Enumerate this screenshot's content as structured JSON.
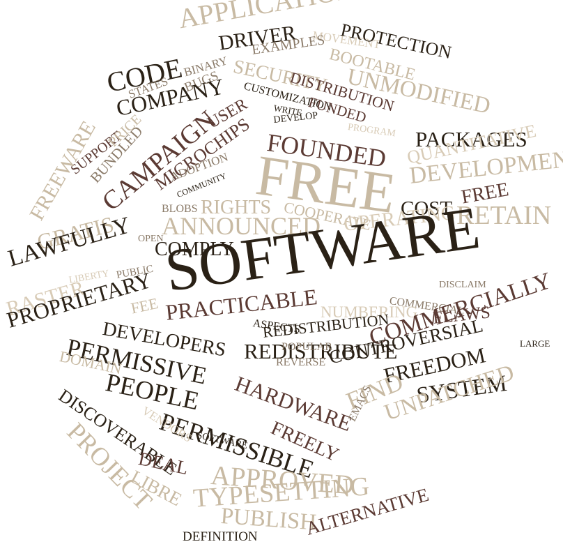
{
  "word_cloud": {
    "words": [
      {
        "text": "APPLICATION",
        "tone": "c3"
      },
      {
        "text": "DRIVER",
        "tone": "c1"
      },
      {
        "text": "MOVEMENT",
        "tone": "c5"
      },
      {
        "text": "PROTECTION",
        "tone": "c1"
      },
      {
        "text": "EXAMPLES",
        "tone": "c4"
      },
      {
        "text": "BOOTABLE",
        "tone": "c3"
      },
      {
        "text": "CODE",
        "tone": "c1"
      },
      {
        "text": "BINARY",
        "tone": "c4"
      },
      {
        "text": "SECURITY",
        "tone": "c3"
      },
      {
        "text": "DISTRIBUTION",
        "tone": "c2"
      },
      {
        "text": "UNMODIFIED",
        "tone": "c3"
      },
      {
        "text": "STATES",
        "tone": "c4"
      },
      {
        "text": "BUGS",
        "tone": "c4"
      },
      {
        "text": "CUSTOMIZATION",
        "tone": "c1"
      },
      {
        "text": "FUNDED",
        "tone": "c2"
      },
      {
        "text": "WRITE",
        "tone": "c1"
      },
      {
        "text": "COMPANY",
        "tone": "c1"
      },
      {
        "text": "DEVELOP",
        "tone": "c1"
      },
      {
        "text": "PROGRAM",
        "tone": "c5"
      },
      {
        "text": "SUPPORT",
        "tone": "c2"
      },
      {
        "text": "PRICE",
        "tone": "c3"
      },
      {
        "text": "USER",
        "tone": "c2"
      },
      {
        "text": "FREEWARE",
        "tone": "c3"
      },
      {
        "text": "BUNDLED",
        "tone": "c4"
      },
      {
        "text": "MICROCHIPS",
        "tone": "c2"
      },
      {
        "text": "FOUNDED",
        "tone": "c2"
      },
      {
        "text": "PACKAGES",
        "tone": "c1"
      },
      {
        "text": "QUANTITATIVE",
        "tone": "c5"
      },
      {
        "text": "CAMPAIGN",
        "tone": "c2"
      },
      {
        "text": "FREE",
        "tone": "c3"
      },
      {
        "text": "DEVELOPMENT",
        "tone": "c3"
      },
      {
        "text": "ADOPTION",
        "tone": "c4"
      },
      {
        "text": "COMMUNITY",
        "tone": "c1"
      },
      {
        "text": "FREE",
        "tone": "c2"
      },
      {
        "text": "COST",
        "tone": "c1"
      },
      {
        "text": "BLOBS",
        "tone": "c4"
      },
      {
        "text": "RIGHTS",
        "tone": "c3"
      },
      {
        "text": "COOPERATE",
        "tone": "c3"
      },
      {
        "text": "RETAIN",
        "tone": "c3"
      },
      {
        "text": "ANNOUNCED",
        "tone": "c3"
      },
      {
        "text": "OPERATING",
        "tone": "c5"
      },
      {
        "text": "GRATIS",
        "tone": "c3"
      },
      {
        "text": "OPEN",
        "tone": "c4"
      },
      {
        "text": "COMPLY",
        "tone": "c1"
      },
      {
        "text": "LAWFULLY",
        "tone": "c1"
      },
      {
        "text": "SOFTWARE",
        "tone": "c1"
      },
      {
        "text": "LIBERTY",
        "tone": "c5"
      },
      {
        "text": "PUBLIC",
        "tone": "c4"
      },
      {
        "text": "RASTER",
        "tone": "c5"
      },
      {
        "text": "DISCLAIM",
        "tone": "c4"
      },
      {
        "text": "PROPRIETARY",
        "tone": "c1"
      },
      {
        "text": "COMMERCIAL",
        "tone": "c4"
      },
      {
        "text": "FEE",
        "tone": "c3"
      },
      {
        "text": "PRACTICABLE",
        "tone": "c2"
      },
      {
        "text": "NUMBERING",
        "tone": "c5"
      },
      {
        "text": "FLAWS",
        "tone": "c2"
      },
      {
        "text": "ASPECTS",
        "tone": "c1"
      },
      {
        "text": "DEVELOPERS",
        "tone": "c1"
      },
      {
        "text": "REDISTRIBUTION",
        "tone": "c1"
      },
      {
        "text": "COMMERCIALLY",
        "tone": "c2"
      },
      {
        "text": "PERMISSIVE",
        "tone": "c1"
      },
      {
        "text": "REDISTRIBUTE",
        "tone": "c1"
      },
      {
        "text": "LARGE",
        "tone": "c1"
      },
      {
        "text": "DOMAIN",
        "tone": "c3"
      },
      {
        "text": "POPULAR",
        "tone": "c4"
      },
      {
        "text": "CONTROVERSIAL",
        "tone": "c1"
      },
      {
        "text": "REVERSE",
        "tone": "c4"
      },
      {
        "text": "PEOPLE",
        "tone": "c1"
      },
      {
        "text": "FREEDOM",
        "tone": "c1"
      },
      {
        "text": "HARDWARE",
        "tone": "c2"
      },
      {
        "text": "FIND",
        "tone": "c3"
      },
      {
        "text": "SYSTEM",
        "tone": "c1"
      },
      {
        "text": "DISCOVERABLE",
        "tone": "c1"
      },
      {
        "text": "UNPATCHED",
        "tone": "c3"
      },
      {
        "text": "PERMISSIBLE",
        "tone": "c1"
      },
      {
        "text": "VENDORS",
        "tone": "c5"
      },
      {
        "text": "SOFTWARE",
        "tone": "c1"
      },
      {
        "text": "FREELY",
        "tone": "c2"
      },
      {
        "text": "EMACS",
        "tone": "c4"
      },
      {
        "text": "PROJECT",
        "tone": "c3"
      },
      {
        "text": "DEAL",
        "tone": "c2"
      },
      {
        "text": "LIBRE",
        "tone": "c3"
      },
      {
        "text": "APPROVED",
        "tone": "c3"
      },
      {
        "text": "TYPESETTING",
        "tone": "c3"
      },
      {
        "text": "PUBLISH",
        "tone": "c3"
      },
      {
        "text": "ALTERNATIVE",
        "tone": "c2"
      },
      {
        "text": "DEFINITION",
        "tone": "c1"
      }
    ]
  }
}
